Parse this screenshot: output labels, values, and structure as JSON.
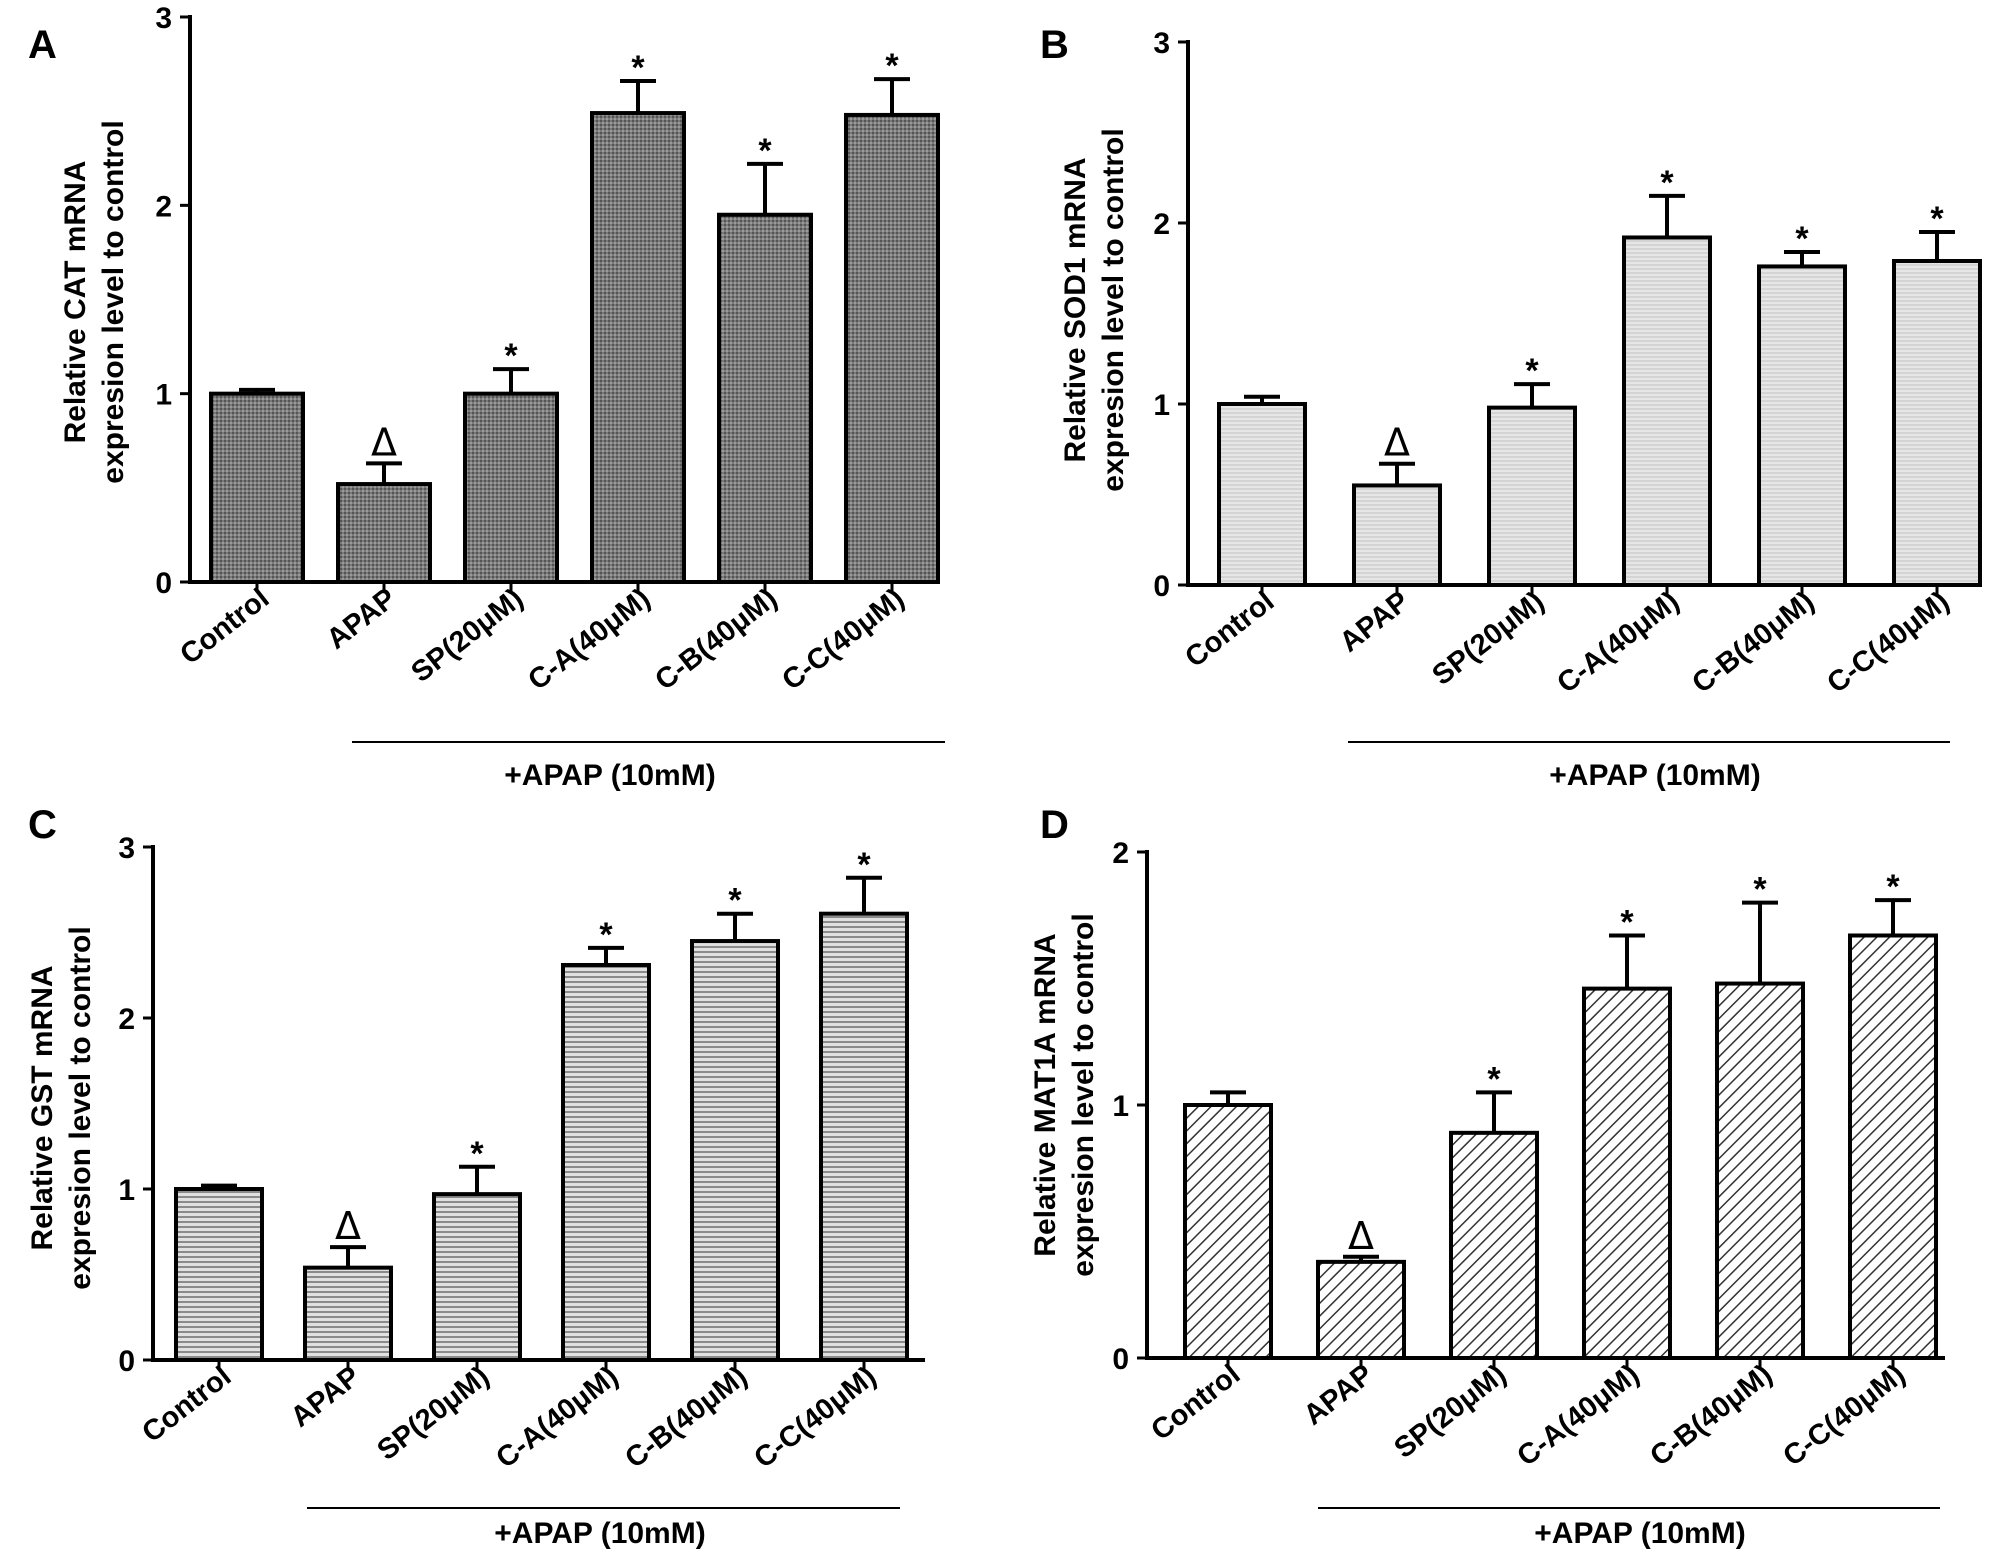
{
  "chart_data": [
    {
      "type": "bar",
      "panel": "A",
      "categories": [
        "Control",
        "APAP",
        "SP(20μM)",
        "C-A(40μM)",
        "C-B(40μM)",
        "C-C(40μM)"
      ],
      "values": [
        1.0,
        0.52,
        1.0,
        2.49,
        1.95,
        2.48
      ],
      "errors": [
        0.02,
        0.11,
        0.13,
        0.17,
        0.27,
        0.19
      ],
      "annotations": [
        "",
        "Δ",
        "*",
        "*",
        "*",
        "*"
      ],
      "ylabel": [
        "Relative CAT mRNA",
        "expresion level to control"
      ],
      "ylim": [
        0,
        3
      ],
      "yticks": [
        0,
        1,
        2,
        3
      ],
      "group_label": "+APAP (10mM)",
      "fill": "#6e6e6e",
      "pattern": "fine-dots"
    },
    {
      "type": "bar",
      "panel": "B",
      "categories": [
        "Control",
        "APAP",
        "SP(20μM)",
        "C-A(40μM)",
        "C-B(40μM)",
        "C-C(40μM)"
      ],
      "values": [
        1.0,
        0.55,
        0.98,
        1.92,
        1.76,
        1.79
      ],
      "errors": [
        0.04,
        0.12,
        0.13,
        0.23,
        0.08,
        0.16
      ],
      "annotations": [
        "",
        "Δ",
        "*",
        "*",
        "*",
        "*"
      ],
      "ylabel": [
        "Relative SOD1 mRNA",
        "expresion level to control"
      ],
      "ylim": [
        0,
        3
      ],
      "yticks": [
        0,
        1,
        2,
        3
      ],
      "group_label": "+APAP (10mM)",
      "fill": "#e2e2e2",
      "pattern": "light-lines"
    },
    {
      "type": "bar",
      "panel": "C",
      "categories": [
        "Control",
        "APAP",
        "SP(20μM)",
        "C-A(40μM)",
        "C-B(40μM)",
        "C-C(40μM)"
      ],
      "values": [
        1.0,
        0.54,
        0.97,
        2.31,
        2.45,
        2.61
      ],
      "errors": [
        0.02,
        0.12,
        0.16,
        0.1,
        0.16,
        0.21
      ],
      "annotations": [
        "",
        "Δ",
        "*",
        "*",
        "*",
        "*"
      ],
      "ylabel": [
        "Relative GST mRNA",
        "expresion level to control"
      ],
      "ylim": [
        0,
        3
      ],
      "yticks": [
        0,
        1,
        2,
        3
      ],
      "group_label": "+APAP (10mM)",
      "fill": "#c4c4c4",
      "pattern": "horizontal-lines"
    },
    {
      "type": "bar",
      "panel": "D",
      "categories": [
        "Control",
        "APAP",
        "SP(20μM)",
        "C-A(40μM)",
        "C-B(40μM)",
        "C-C(40μM)"
      ],
      "values": [
        1.0,
        0.38,
        0.89,
        1.46,
        1.48,
        1.67
      ],
      "errors": [
        0.05,
        0.02,
        0.16,
        0.21,
        0.32,
        0.14
      ],
      "annotations": [
        "",
        "Δ",
        "*",
        "*",
        "*",
        "*"
      ],
      "ylabel": [
        "Relative MAT1A mRNA",
        "expresion level to control"
      ],
      "ylim": [
        0,
        2
      ],
      "yticks": [
        0,
        1,
        2
      ],
      "group_label": "+APAP (10mM)",
      "fill": "#ffffff",
      "pattern": "diagonal-hatch"
    }
  ]
}
